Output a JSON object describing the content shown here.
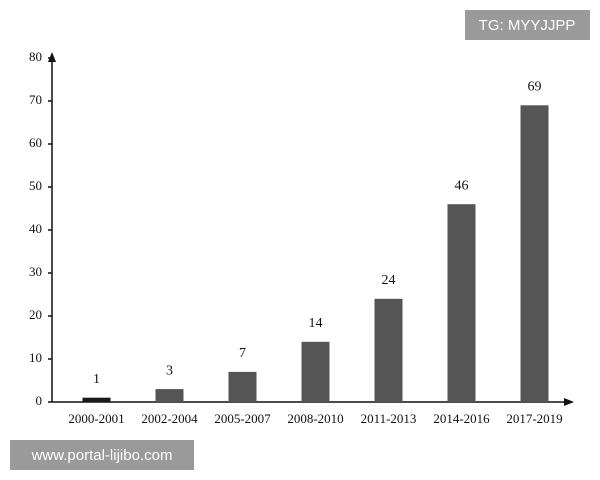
{
  "chart_data": {
    "type": "bar",
    "categories": [
      "2000-2001",
      "2002-2004",
      "2005-2007",
      "2008-2010",
      "2011-2013",
      "2014-2016",
      "2017-2019"
    ],
    "values": [
      1,
      3,
      7,
      14,
      24,
      46,
      69
    ],
    "colors": [
      "#1a1a1a",
      "#555555",
      "#555555",
      "#555555",
      "#555555",
      "#555555",
      "#555555"
    ],
    "ylim": [
      0,
      80
    ],
    "yticks": [
      0,
      10,
      20,
      30,
      40,
      50,
      60,
      70,
      80
    ],
    "grid": false
  },
  "watermarks": {
    "top": "TG: MYYJJPP",
    "bottom": "www.portal-lijibo.com"
  }
}
